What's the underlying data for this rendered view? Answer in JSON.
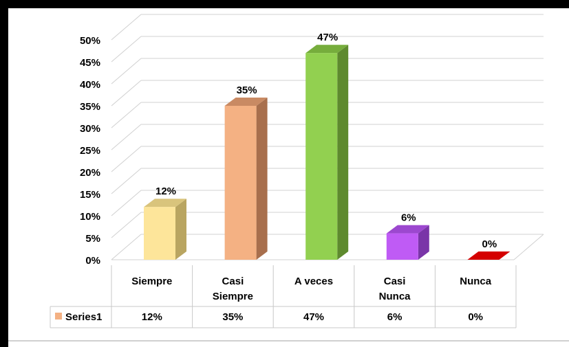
{
  "chart_data": {
    "type": "bar",
    "categories": [
      [
        "Siempre"
      ],
      [
        "Casi",
        "Siempre"
      ],
      [
        "A veces"
      ],
      [
        "Casi",
        "Nunca"
      ],
      [
        "Nunca"
      ]
    ],
    "series": [
      {
        "name": "Series1",
        "values": [
          12,
          35,
          47,
          6,
          0
        ]
      }
    ],
    "data_labels": [
      "12%",
      "35%",
      "47%",
      "6%",
      "0%"
    ],
    "table_values": [
      "12%",
      "35%",
      "47%",
      "6%",
      "0%"
    ],
    "y_ticks": [
      "0%",
      "5%",
      "10%",
      "15%",
      "20%",
      "25%",
      "30%",
      "35%",
      "40%",
      "45%",
      "50%"
    ],
    "ylim": [
      0,
      50
    ],
    "three_d": true,
    "grid": true,
    "legend": "data-table",
    "bar_colors": [
      {
        "front": "#fde59a",
        "side": "#b9a561",
        "top": "#d9c47c"
      },
      {
        "front": "#f4b183",
        "side": "#a86f4d",
        "top": "#c98a63"
      },
      {
        "front": "#92d050",
        "side": "#5e8a2e",
        "top": "#76ad3c"
      },
      {
        "front": "#bf5bf5",
        "side": "#7a35a8",
        "top": "#9c47cf"
      },
      {
        "front": "#c00000",
        "side": "#8a0000",
        "top": "#d40000"
      }
    ],
    "legend_key_color": "#f4b183"
  }
}
